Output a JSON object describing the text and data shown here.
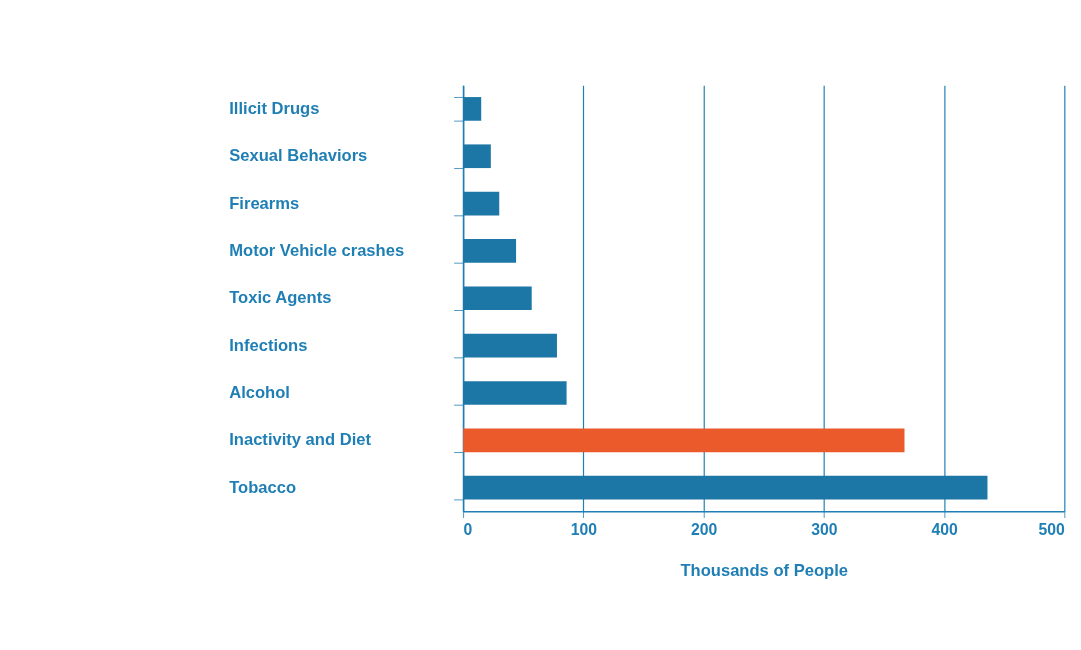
{
  "chart_data": {
    "type": "bar",
    "orientation": "horizontal",
    "xlabel": "Thousands of People",
    "categories": [
      "Illicit Drugs",
      "Sexual Behaviors",
      "Firearms",
      "Motor Vehicle crashes",
      "Toxic Agents",
      "Infections",
      "Alcohol",
      "Inactivity and Diet",
      "Tobacco"
    ],
    "values": [
      15,
      23,
      30,
      44,
      57,
      78,
      86,
      367,
      436
    ],
    "colors": [
      "#1c77a6",
      "#1c77a6",
      "#1c77a6",
      "#1c77a6",
      "#1c77a6",
      "#1c77a6",
      "#1c77a6",
      "#ea5a2a",
      "#1c77a6"
    ],
    "xlim": [
      0,
      500
    ],
    "xticks": [
      0,
      100,
      200,
      300,
      400,
      500
    ],
    "grid": "x"
  }
}
